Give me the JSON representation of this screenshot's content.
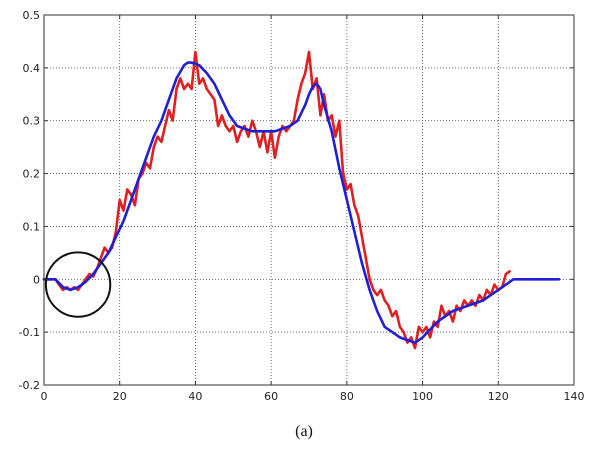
{
  "chart_data": {
    "type": "line",
    "title": "",
    "xlabel": "",
    "ylabel": "",
    "caption": "(a)",
    "xlim": [
      0,
      140
    ],
    "ylim": [
      -0.2,
      0.5
    ],
    "grid": true,
    "x_ticks": [
      0,
      20,
      40,
      60,
      80,
      100,
      120,
      140
    ],
    "y_ticks": [
      -0.2,
      -0.1,
      0,
      0.1,
      0.2,
      0.3,
      0.4,
      0.5
    ],
    "x_tick_labels": [
      "0",
      "20",
      "40",
      "60",
      "80",
      "100",
      "120",
      "140"
    ],
    "y_tick_labels": [
      "-0.2",
      "-0.1",
      "0",
      "0.1",
      "0.2",
      "0.3",
      "0.4",
      "0.5"
    ],
    "annotations": [
      {
        "type": "circle",
        "center": [
          9,
          -0.01
        ],
        "radius_x_units": 8.5
      }
    ],
    "series": [
      {
        "color": "#e02020",
        "x": [
          0,
          3,
          4,
          5,
          6,
          7,
          8,
          9,
          10,
          11,
          12,
          13,
          14,
          15,
          16,
          17,
          18,
          19,
          20,
          21,
          22,
          23,
          24,
          25,
          26,
          27,
          28,
          29,
          30,
          31,
          32,
          33,
          34,
          35,
          36,
          37,
          38,
          39,
          40,
          41,
          42,
          43,
          44,
          45,
          46,
          47,
          48,
          49,
          50,
          51,
          52,
          53,
          54,
          55,
          56,
          57,
          58,
          59,
          60,
          61,
          62,
          63,
          64,
          65,
          66,
          67,
          68,
          69,
          70,
          71,
          72,
          73,
          74,
          75,
          76,
          77,
          78,
          79,
          80,
          81,
          82,
          83,
          84,
          85,
          86,
          87,
          88,
          89,
          90,
          91,
          92,
          93,
          94,
          95,
          96,
          97,
          98,
          99,
          100,
          101,
          102,
          103,
          104,
          105,
          106,
          107,
          108,
          109,
          110,
          111,
          112,
          113,
          114,
          115,
          116,
          117,
          118,
          119,
          120,
          121,
          122,
          123
        ],
        "y": [
          0,
          0,
          -0.01,
          -0.02,
          -0.015,
          -0.02,
          -0.015,
          -0.02,
          -0.01,
          0.0,
          0.01,
          0.005,
          0.02,
          0.04,
          0.06,
          0.05,
          0.06,
          0.09,
          0.15,
          0.13,
          0.17,
          0.16,
          0.14,
          0.19,
          0.2,
          0.22,
          0.21,
          0.25,
          0.27,
          0.26,
          0.29,
          0.32,
          0.3,
          0.36,
          0.38,
          0.36,
          0.37,
          0.36,
          0.43,
          0.37,
          0.38,
          0.36,
          0.35,
          0.34,
          0.29,
          0.31,
          0.29,
          0.28,
          0.29,
          0.26,
          0.28,
          0.29,
          0.27,
          0.3,
          0.28,
          0.25,
          0.28,
          0.24,
          0.28,
          0.23,
          0.27,
          0.29,
          0.28,
          0.29,
          0.3,
          0.34,
          0.37,
          0.39,
          0.43,
          0.36,
          0.38,
          0.31,
          0.35,
          0.3,
          0.31,
          0.27,
          0.3,
          0.2,
          0.17,
          0.18,
          0.14,
          0.12,
          0.08,
          0.04,
          0.0,
          -0.02,
          -0.03,
          -0.02,
          -0.04,
          -0.05,
          -0.07,
          -0.06,
          -0.09,
          -0.1,
          -0.12,
          -0.11,
          -0.13,
          -0.09,
          -0.1,
          -0.09,
          -0.11,
          -0.08,
          -0.09,
          -0.05,
          -0.07,
          -0.06,
          -0.08,
          -0.05,
          -0.06,
          -0.04,
          -0.05,
          -0.04,
          -0.05,
          -0.03,
          -0.04,
          -0.02,
          -0.03,
          -0.01,
          -0.02,
          -0.015,
          0.01,
          0.015
        ]
      },
      {
        "color": "#1f1fd6",
        "x": [
          0,
          3,
          5,
          7,
          9,
          11,
          13,
          15,
          17,
          19,
          21,
          23,
          25,
          27,
          29,
          31,
          33,
          35,
          37,
          38,
          39,
          41,
          43,
          45,
          47,
          49,
          51,
          53,
          55,
          57,
          59,
          61,
          63,
          65,
          67,
          69,
          70,
          71,
          72,
          73,
          74,
          76,
          78,
          80,
          82,
          84,
          86,
          88,
          90,
          92,
          94,
          96,
          98,
          100,
          102,
          104,
          106,
          108,
          110,
          112,
          114,
          116,
          118,
          120,
          122,
          124,
          126,
          130,
          136
        ],
        "y": [
          0,
          0,
          -0.015,
          -0.02,
          -0.015,
          -0.005,
          0.01,
          0.03,
          0.05,
          0.08,
          0.11,
          0.15,
          0.19,
          0.23,
          0.27,
          0.3,
          0.34,
          0.38,
          0.405,
          0.41,
          0.41,
          0.405,
          0.39,
          0.37,
          0.34,
          0.31,
          0.29,
          0.285,
          0.28,
          0.28,
          0.28,
          0.28,
          0.285,
          0.29,
          0.3,
          0.33,
          0.35,
          0.365,
          0.37,
          0.36,
          0.33,
          0.28,
          0.21,
          0.15,
          0.09,
          0.03,
          -0.02,
          -0.06,
          -0.09,
          -0.1,
          -0.11,
          -0.115,
          -0.12,
          -0.11,
          -0.095,
          -0.08,
          -0.07,
          -0.06,
          -0.055,
          -0.05,
          -0.045,
          -0.04,
          -0.03,
          -0.02,
          -0.01,
          0.0,
          0.0,
          0.0,
          0.0
        ]
      }
    ]
  }
}
